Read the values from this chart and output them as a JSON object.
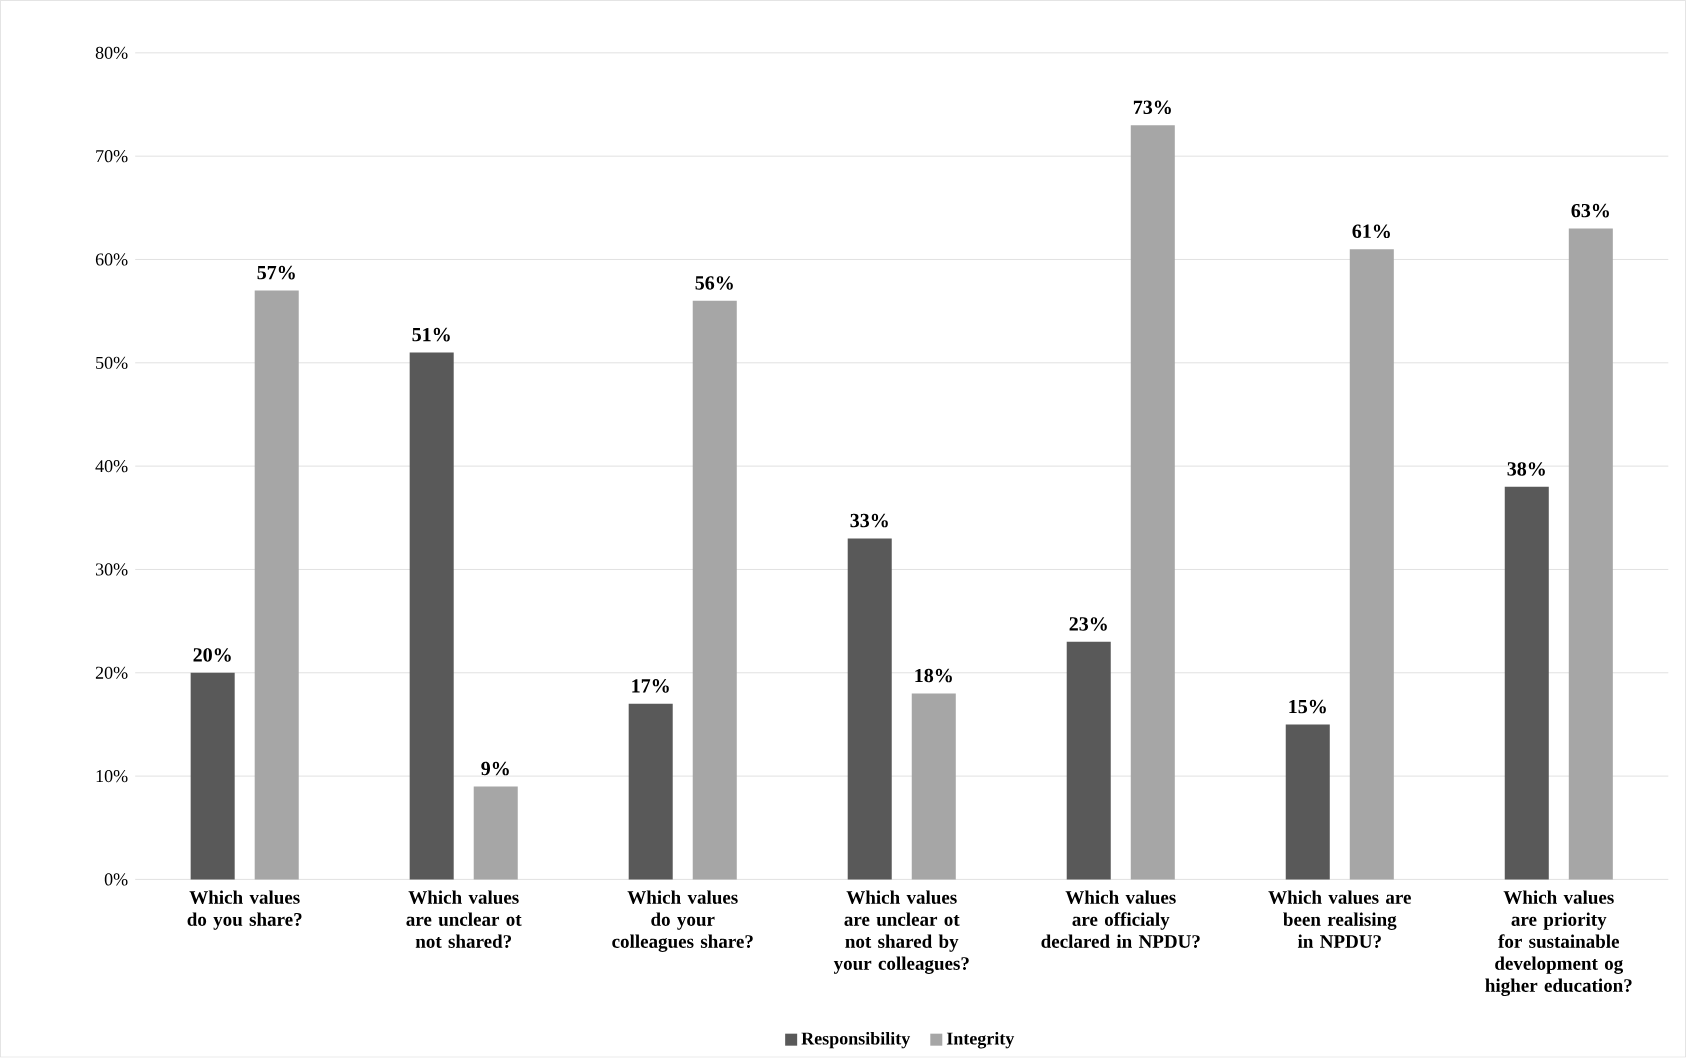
{
  "chart_data": {
    "type": "bar",
    "categories": [
      "Which values do you share?",
      "Which values are unclear ot not shared?",
      "Which values do your colleagues share?",
      "Which values are unclear ot not shared by your colleagues?",
      "Which values are officialy declared in NPDU?",
      "Which values are been realising in NPDU?",
      "Which values are priority for sustainable development og higher education?"
    ],
    "series": [
      {
        "name": "Responsibility",
        "color": "#595959",
        "values": [
          20,
          51,
          17,
          33,
          23,
          15,
          38
        ],
        "value_labels": [
          "20%",
          "51%",
          "17%",
          "33%",
          "23%",
          "15%",
          "38%"
        ]
      },
      {
        "name": "Integrity",
        "color": "#a6a6a6",
        "values": [
          57,
          9,
          56,
          18,
          73,
          61,
          63
        ],
        "value_labels": [
          "57%",
          "9%",
          "56%",
          "18%",
          "73%",
          "61%",
          "63%"
        ]
      }
    ],
    "ylim": [
      0,
      80
    ],
    "yticks": [
      {
        "value": 0,
        "label": "0%"
      },
      {
        "value": 10,
        "label": "10%"
      },
      {
        "value": 20,
        "label": "20%"
      },
      {
        "value": 30,
        "label": "30%"
      },
      {
        "value": 40,
        "label": "40%"
      },
      {
        "value": 50,
        "label": "50%"
      },
      {
        "value": 60,
        "label": "60%"
      },
      {
        "value": 70,
        "label": "70%"
      },
      {
        "value": 80,
        "label": "80%"
      }
    ],
    "grid": "y",
    "legend": "bottom"
  }
}
